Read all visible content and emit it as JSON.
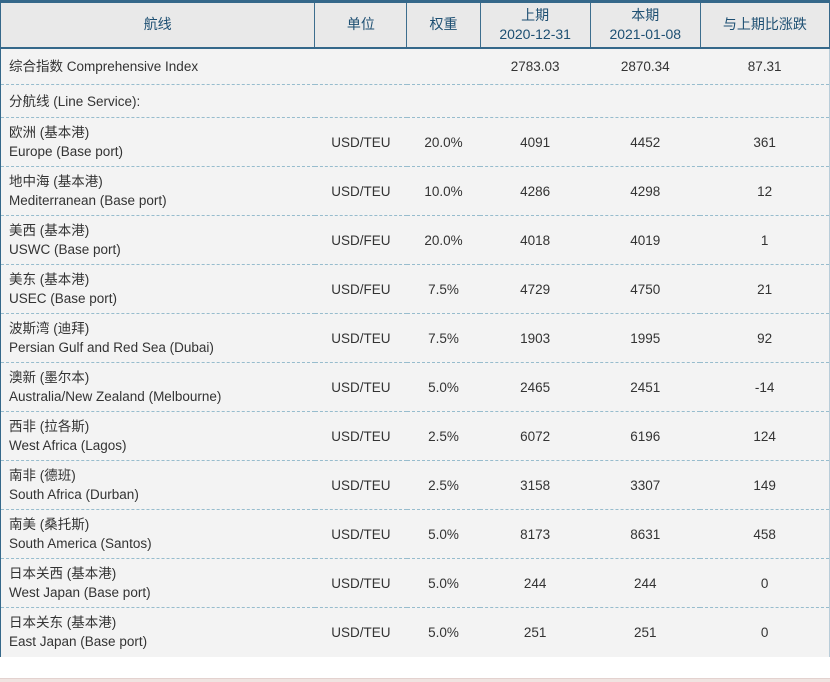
{
  "colors": {
    "border_navy": "#35688a",
    "header_background": "#e9e9e9",
    "header_text": "#1d4f72",
    "body_background": "#f3f3f3",
    "row_divider_dashed": "#97bccd",
    "body_text": "#333333",
    "bottom_strip": "#f0e4e1"
  },
  "header": {
    "route": "航线",
    "unit": "单位",
    "weight": "权重",
    "previous_line1": "上期",
    "previous_line2": "2020-12-31",
    "current_line1": "本期",
    "current_line2": "2021-01-08",
    "change": "与上期比涨跌"
  },
  "summary": {
    "label": "综合指数 Comprehensive Index",
    "previous": "2783.03",
    "current": "2870.34",
    "change": "87.31"
  },
  "section": {
    "label": "分航线 (Line Service):"
  },
  "rows": [
    {
      "route_zh": "欧洲 (基本港)",
      "route_en": "Europe (Base port)",
      "unit": "USD/TEU",
      "weight": "20.0%",
      "previous": "4091",
      "current": "4452",
      "change": "361"
    },
    {
      "route_zh": "地中海 (基本港)",
      "route_en": "Mediterranean (Base port)",
      "unit": "USD/TEU",
      "weight": "10.0%",
      "previous": "4286",
      "current": "4298",
      "change": "12"
    },
    {
      "route_zh": "美西 (基本港)",
      "route_en": "USWC (Base port)",
      "unit": "USD/FEU",
      "weight": "20.0%",
      "previous": "4018",
      "current": "4019",
      "change": "1"
    },
    {
      "route_zh": "美东 (基本港)",
      "route_en": "USEC (Base port)",
      "unit": "USD/FEU",
      "weight": "7.5%",
      "previous": "4729",
      "current": "4750",
      "change": "21"
    },
    {
      "route_zh": "波斯湾 (迪拜)",
      "route_en": "Persian Gulf and Red Sea (Dubai)",
      "unit": "USD/TEU",
      "weight": "7.5%",
      "previous": "1903",
      "current": "1995",
      "change": "92"
    },
    {
      "route_zh": "澳新 (墨尔本)",
      "route_en": "Australia/New Zealand (Melbourne)",
      "unit": "USD/TEU",
      "weight": "5.0%",
      "previous": "2465",
      "current": "2451",
      "change": "-14"
    },
    {
      "route_zh": "西非 (拉各斯)",
      "route_en": "West Africa (Lagos)",
      "unit": "USD/TEU",
      "weight": "2.5%",
      "previous": "6072",
      "current": "6196",
      "change": "124"
    },
    {
      "route_zh": "南非 (德班)",
      "route_en": "South Africa (Durban)",
      "unit": "USD/TEU",
      "weight": "2.5%",
      "previous": "3158",
      "current": "3307",
      "change": "149"
    },
    {
      "route_zh": "南美 (桑托斯)",
      "route_en": "South America (Santos)",
      "unit": "USD/TEU",
      "weight": "5.0%",
      "previous": "8173",
      "current": "8631",
      "change": "458"
    },
    {
      "route_zh": "日本关西 (基本港)",
      "route_en": "West Japan (Base port)",
      "unit": "USD/TEU",
      "weight": "5.0%",
      "previous": "244",
      "current": "244",
      "change": "0"
    },
    {
      "route_zh": "日本关东 (基本港)",
      "route_en": "East Japan (Base port)",
      "unit": "USD/TEU",
      "weight": "5.0%",
      "previous": "251",
      "current": "251",
      "change": "0"
    }
  ],
  "chart_data": {
    "type": "table",
    "title": "Shanghai Containerized Freight Index table",
    "columns": [
      "航线",
      "单位",
      "权重",
      "上期 2020-12-31",
      "本期 2021-01-08",
      "与上期比涨跌"
    ],
    "rows": [
      [
        "综合指数 Comprehensive Index",
        "",
        "",
        "2783.03",
        "2870.34",
        "87.31"
      ],
      [
        "分航线 (Line Service):",
        "",
        "",
        "",
        "",
        ""
      ],
      [
        "欧洲 (基本港) Europe (Base port)",
        "USD/TEU",
        "20.0%",
        "4091",
        "4452",
        "361"
      ],
      [
        "地中海 (基本港) Mediterranean (Base port)",
        "USD/TEU",
        "10.0%",
        "4286",
        "4298",
        "12"
      ],
      [
        "美西 (基本港) USWC (Base port)",
        "USD/FEU",
        "20.0%",
        "4018",
        "4019",
        "1"
      ],
      [
        "美东 (基本港) USEC (Base port)",
        "USD/FEU",
        "7.5%",
        "4729",
        "4750",
        "21"
      ],
      [
        "波斯湾 (迪拜) Persian Gulf and Red Sea (Dubai)",
        "USD/TEU",
        "7.5%",
        "1903",
        "1995",
        "92"
      ],
      [
        "澳新 (墨尔本) Australia/New Zealand (Melbourne)",
        "USD/TEU",
        "5.0%",
        "2465",
        "2451",
        "-14"
      ],
      [
        "西非 (拉各斯) West Africa (Lagos)",
        "USD/TEU",
        "2.5%",
        "6072",
        "6196",
        "124"
      ],
      [
        "南非 (德班) South Africa (Durban)",
        "USD/TEU",
        "2.5%",
        "3158",
        "3307",
        "149"
      ],
      [
        "南美 (桑托斯) South America (Santos)",
        "USD/TEU",
        "5.0%",
        "8173",
        "8631",
        "458"
      ],
      [
        "日本关西 (基本港) West Japan (Base port)",
        "USD/TEU",
        "5.0%",
        "244",
        "244",
        "0"
      ],
      [
        "日本关东 (基本港) East Japan (Base port)",
        "USD/TEU",
        "5.0%",
        "251",
        "251",
        "0"
      ]
    ]
  }
}
